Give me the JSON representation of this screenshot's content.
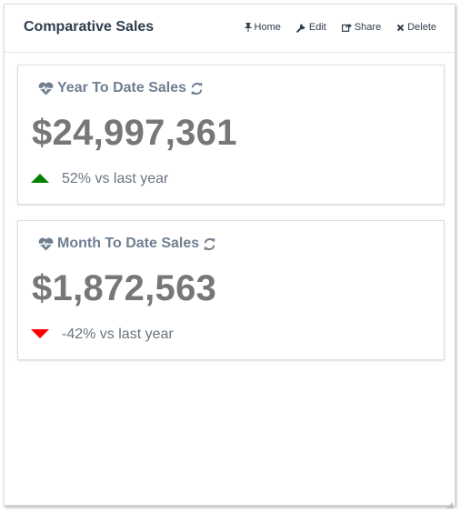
{
  "widget": {
    "title": "Comparative Sales",
    "actions": [
      {
        "label": "Home",
        "icon": "pin-icon"
      },
      {
        "label": "Edit",
        "icon": "wrench-icon"
      },
      {
        "label": "Share",
        "icon": "share-icon"
      },
      {
        "label": "Delete",
        "icon": "close-icon"
      }
    ]
  },
  "cards": [
    {
      "title": "Year To Date Sales",
      "title_icon": "heartbeat-icon",
      "refresh_icon": "refresh-icon",
      "value": "$24,997,361",
      "trend_direction": "up",
      "trend_color": "#008000",
      "trend_text": "52% vs last year"
    },
    {
      "title": "Month To Date Sales",
      "title_icon": "heartbeat-icon",
      "refresh_icon": "refresh-icon",
      "value": "$1,872,563",
      "trend_direction": "down",
      "trend_color": "#ff0000",
      "trend_text": "-42% vs last year"
    }
  ]
}
